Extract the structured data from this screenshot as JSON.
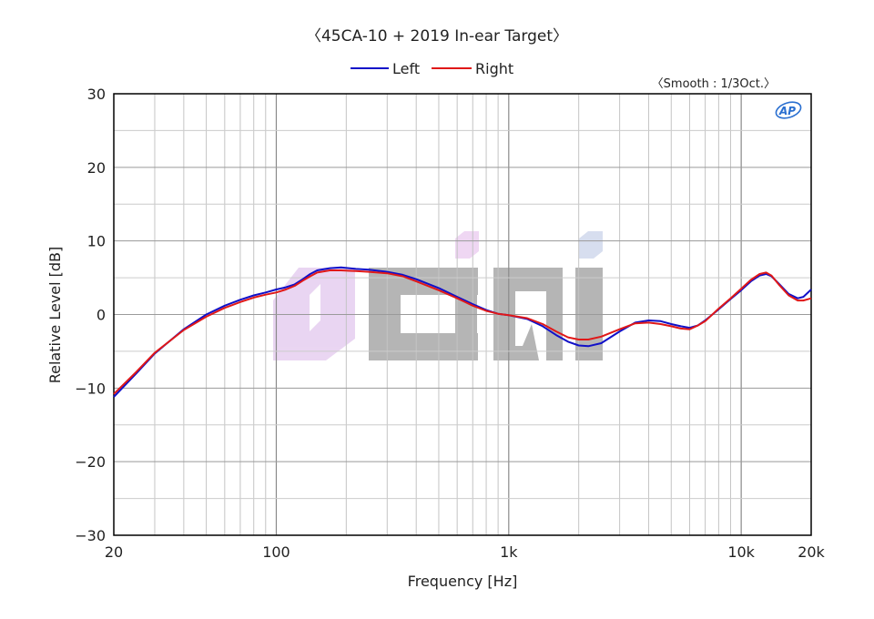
{
  "chart_data": {
    "type": "line",
    "title": "〈45CA-10 + 2019 In-ear Target〉",
    "smoothing_note": "〈Smooth : 1/3Oct.〉",
    "logo_text": "AP",
    "watermark_text": "ocini",
    "xlabel": "Frequency [Hz]",
    "ylabel": "Relative Level [dB]",
    "x_scale": "log",
    "xlim": [
      20,
      20000
    ],
    "ylim": [
      -30,
      30
    ],
    "grid": true,
    "legend_position": "top-center",
    "x_ticks": [
      {
        "value": 20,
        "label": "20"
      },
      {
        "value": 100,
        "label": "100"
      },
      {
        "value": 1000,
        "label": "1k"
      },
      {
        "value": 10000,
        "label": "10k"
      },
      {
        "value": 20000,
        "label": "20k"
      }
    ],
    "y_ticks": [
      {
        "value": 30,
        "label": "30"
      },
      {
        "value": 20,
        "label": "20"
      },
      {
        "value": 10,
        "label": "10"
      },
      {
        "value": 0,
        "label": "0"
      },
      {
        "value": -10,
        "label": "−10"
      },
      {
        "value": -20,
        "label": "−20"
      },
      {
        "value": -30,
        "label": "−30"
      }
    ],
    "series": [
      {
        "name": "Left",
        "color": "#1010c8",
        "points": [
          [
            20,
            -11.2
          ],
          [
            25,
            -8
          ],
          [
            30,
            -5.3
          ],
          [
            40,
            -2
          ],
          [
            50,
            0
          ],
          [
            60,
            1.2
          ],
          [
            70,
            2
          ],
          [
            80,
            2.6
          ],
          [
            90,
            3
          ],
          [
            100,
            3.4
          ],
          [
            110,
            3.7
          ],
          [
            120,
            4.1
          ],
          [
            130,
            4.8
          ],
          [
            140,
            5.5
          ],
          [
            150,
            6
          ],
          [
            170,
            6.3
          ],
          [
            190,
            6.4
          ],
          [
            220,
            6.2
          ],
          [
            250,
            6.1
          ],
          [
            300,
            5.8
          ],
          [
            350,
            5.4
          ],
          [
            400,
            4.8
          ],
          [
            500,
            3.6
          ],
          [
            600,
            2.4
          ],
          [
            700,
            1.4
          ],
          [
            800,
            0.6
          ],
          [
            900,
            0.1
          ],
          [
            1000,
            -0.1
          ],
          [
            1200,
            -0.6
          ],
          [
            1400,
            -1.6
          ],
          [
            1600,
            -2.8
          ],
          [
            1800,
            -3.7
          ],
          [
            2000,
            -4.2
          ],
          [
            2200,
            -4.3
          ],
          [
            2500,
            -3.9
          ],
          [
            3000,
            -2.3
          ],
          [
            3500,
            -1.1
          ],
          [
            4000,
            -0.8
          ],
          [
            4500,
            -0.9
          ],
          [
            5000,
            -1.3
          ],
          [
            5500,
            -1.6
          ],
          [
            6000,
            -1.8
          ],
          [
            6500,
            -1.5
          ],
          [
            7000,
            -0.8
          ],
          [
            8000,
            0.7
          ],
          [
            9000,
            2.1
          ],
          [
            10000,
            3.3
          ],
          [
            11000,
            4.5
          ],
          [
            12000,
            5.3
          ],
          [
            12800,
            5.5
          ],
          [
            13500,
            5.2
          ],
          [
            14500,
            4.2
          ],
          [
            16000,
            2.8
          ],
          [
            17500,
            2.2
          ],
          [
            18500,
            2.4
          ],
          [
            20000,
            3.4
          ]
        ]
      },
      {
        "name": "Right",
        "color": "#e01818",
        "points": [
          [
            20,
            -10.8
          ],
          [
            25,
            -7.8
          ],
          [
            30,
            -5.2
          ],
          [
            40,
            -2.1
          ],
          [
            50,
            -0.3
          ],
          [
            60,
            0.9
          ],
          [
            70,
            1.7
          ],
          [
            80,
            2.3
          ],
          [
            90,
            2.7
          ],
          [
            100,
            3
          ],
          [
            110,
            3.4
          ],
          [
            120,
            3.9
          ],
          [
            130,
            4.6
          ],
          [
            140,
            5.2
          ],
          [
            150,
            5.7
          ],
          [
            170,
            6
          ],
          [
            190,
            6
          ],
          [
            220,
            5.9
          ],
          [
            250,
            5.8
          ],
          [
            300,
            5.6
          ],
          [
            350,
            5.2
          ],
          [
            400,
            4.5
          ],
          [
            500,
            3.3
          ],
          [
            600,
            2.2
          ],
          [
            700,
            1.2
          ],
          [
            800,
            0.5
          ],
          [
            900,
            0.1
          ],
          [
            1000,
            -0.1
          ],
          [
            1200,
            -0.5
          ],
          [
            1400,
            -1.3
          ],
          [
            1600,
            -2.3
          ],
          [
            1800,
            -3.1
          ],
          [
            2000,
            -3.4
          ],
          [
            2200,
            -3.4
          ],
          [
            2500,
            -3
          ],
          [
            3000,
            -2
          ],
          [
            3500,
            -1.2
          ],
          [
            4000,
            -1.1
          ],
          [
            4500,
            -1.3
          ],
          [
            5000,
            -1.6
          ],
          [
            5500,
            -1.9
          ],
          [
            6000,
            -2
          ],
          [
            6500,
            -1.5
          ],
          [
            7000,
            -0.9
          ],
          [
            8000,
            0.8
          ],
          [
            9000,
            2.2
          ],
          [
            10000,
            3.5
          ],
          [
            11000,
            4.7
          ],
          [
            12000,
            5.5
          ],
          [
            12800,
            5.7
          ],
          [
            13500,
            5.3
          ],
          [
            14500,
            4.1
          ],
          [
            16000,
            2.6
          ],
          [
            17500,
            1.9
          ],
          [
            18500,
            1.9
          ],
          [
            20000,
            2.2
          ]
        ]
      }
    ]
  }
}
